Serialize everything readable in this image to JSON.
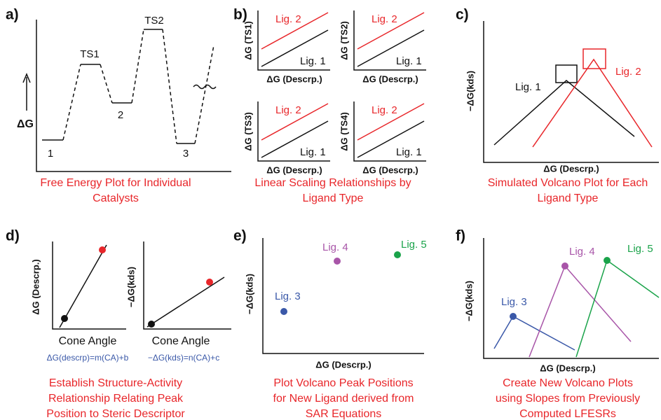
{
  "a": {
    "label": "a)",
    "y_label": "ΔG",
    "states": [
      "TS1",
      "TS2",
      "1",
      "2",
      "3"
    ],
    "caption": [
      "Free Energy Plot for Individual",
      "Catalysts"
    ]
  },
  "b": {
    "label": "b)",
    "plots": [
      {
        "y_label": "ΔG (TS1)",
        "x_label": "ΔG (Descrp.)",
        "series": [
          "Lig. 2",
          "Lig. 1"
        ]
      },
      {
        "y_label": "ΔG (TS2)",
        "x_label": "ΔG (Descrp.)",
        "series": [
          "Lig. 2",
          "Lig. 1"
        ]
      },
      {
        "y_label": "ΔG (TS3)",
        "x_label": "ΔG (Descrp.)",
        "series": [
          "Lig. 2",
          "Lig. 1"
        ]
      },
      {
        "y_label": "ΔG (TS4)",
        "x_label": "ΔG (Descrp.)",
        "series": [
          "Lig. 2",
          "Lig. 1"
        ]
      }
    ],
    "caption": [
      "Linear Scaling Relationships by",
      "Ligand Type"
    ]
  },
  "c": {
    "label": "c)",
    "y_label": "−ΔG(kds)",
    "x_label": "ΔG (Descrp.)",
    "series": [
      "Lig. 1",
      "Lig. 2"
    ],
    "caption": [
      "Simulated Volcano Plot for Each",
      "Ligand Type"
    ]
  },
  "d": {
    "label": "d)",
    "plots": [
      {
        "y_label": "ΔG (Descrp.)",
        "x_label": "Cone Angle",
        "equation": "ΔG(descrp)=m(CA)+b"
      },
      {
        "y_label": "−ΔG(kds)",
        "x_label": "Cone Angle",
        "equation": "−ΔG(kds)=n(CA)+c"
      }
    ],
    "caption": [
      "Establish Structure-Activity",
      "Relationship Relating Peak",
      "Position to Steric Descriptor"
    ]
  },
  "e": {
    "label": "e)",
    "y_label": "−ΔG(kds)",
    "x_label": "ΔG (Descrp.)",
    "series": [
      "Lig. 3",
      "Lig. 4",
      "Lig. 5"
    ],
    "caption": [
      "Plot Volcano Peak Positions",
      "for New Ligand derived from",
      "SAR Equations"
    ]
  },
  "f": {
    "label": "f)",
    "y_label": "−ΔG(kds)",
    "x_label": "ΔG (Descrp.)",
    "series": [
      "Lig. 3",
      "Lig. 4",
      "Lig. 5"
    ],
    "caption": [
      "Create New Volcano Plots",
      "using Slopes from Previously",
      "Computed LFESRs"
    ]
  }
}
